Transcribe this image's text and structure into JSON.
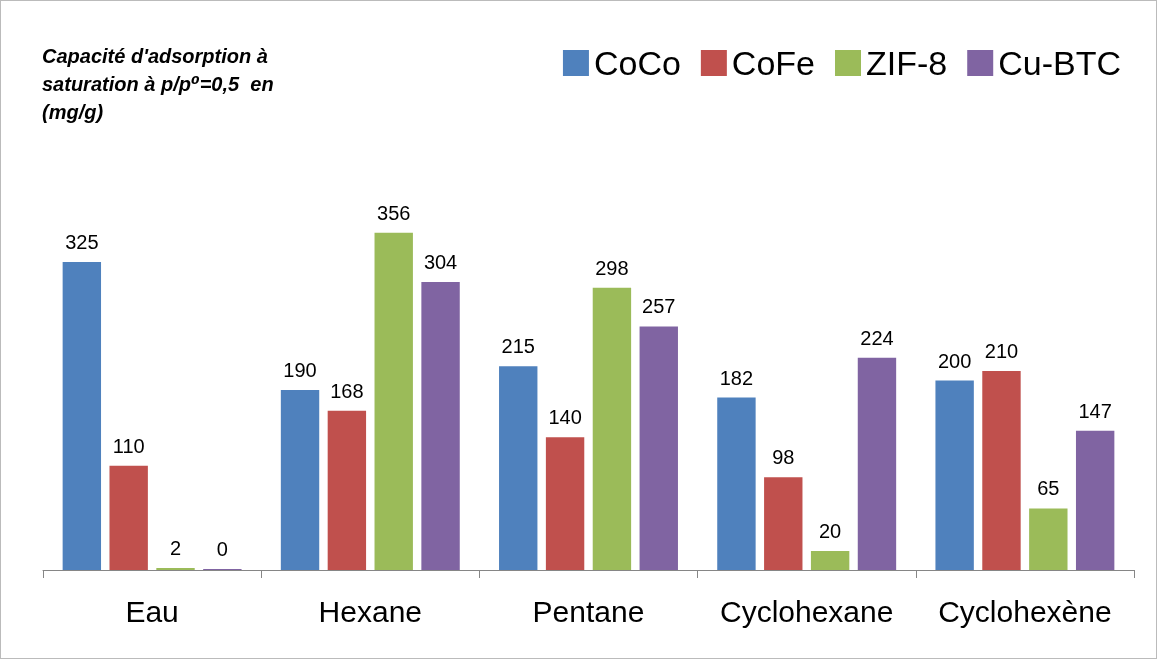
{
  "chart_data": {
    "type": "bar",
    "title": "Capacité d'adsorption à saturation à p/p⁰=0,5  en (mg/g)",
    "categories": [
      "Eau",
      "Hexane",
      "Pentane",
      "Cyclohexane",
      "Cyclohexène"
    ],
    "series": [
      {
        "name": "CoCo",
        "color": "#4f81bd",
        "values": [
          325,
          190,
          215,
          182,
          200
        ]
      },
      {
        "name": "CoFe",
        "color": "#c0504d",
        "values": [
          110,
          168,
          140,
          98,
          210
        ]
      },
      {
        "name": "ZIF-8",
        "color": "#9bbb59",
        "values": [
          2,
          356,
          298,
          20,
          65
        ]
      },
      {
        "name": "Cu-BTC",
        "color": "#8064a2",
        "values": [
          0,
          304,
          257,
          224,
          147
        ]
      }
    ],
    "data_labels": true,
    "legend": "top right",
    "grid": false
  }
}
